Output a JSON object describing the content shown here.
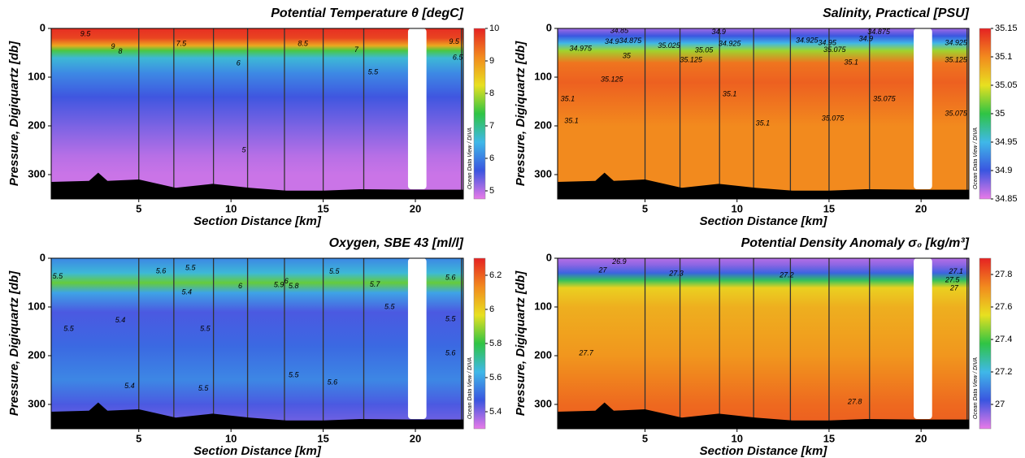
{
  "chart_data": [
    {
      "type": "contour",
      "title": "Potential Temperature θ [degC]",
      "xlabel": "Section Distance [km]",
      "ylabel": "Pressure, Digiquartz [db]",
      "watermark": "Ocean Data View / DIVA",
      "xlim": [
        0.25,
        22.6
      ],
      "ylim": [
        350,
        0
      ],
      "xticks": [
        5,
        10,
        15,
        20
      ],
      "yticks": [
        0,
        100,
        200,
        300
      ],
      "clim": [
        4.75,
        10
      ],
      "cticks": [
        5,
        6,
        7,
        8,
        9,
        10
      ],
      "colormap": [
        "#e87ae8",
        "#3a55e0",
        "#3fb8e8",
        "#2fc444",
        "#e8e020",
        "#f28a1e",
        "#e52222"
      ],
      "field": {
        "depth": [
          0,
          20,
          35,
          45,
          60,
          90,
          140,
          200,
          260,
          300,
          350
        ],
        "values": [
          9.9,
          9.7,
          8.8,
          7.5,
          6.6,
          6.1,
          5.6,
          5.3,
          5.0,
          4.9,
          4.9
        ]
      },
      "stations": [
        5,
        6.9,
        9.05,
        10.9,
        12.9,
        15,
        17.2,
        22.5
      ],
      "gap_x": [
        19.6,
        20.6
      ],
      "bathymetry": {
        "x": [
          0.25,
          2.3,
          2.8,
          3.3,
          5,
          7,
          9,
          11,
          13,
          15,
          17,
          20,
          22.6
        ],
        "y": [
          315,
          313,
          296,
          313,
          310,
          327,
          319,
          327,
          333,
          333,
          330,
          331,
          331
        ]
      },
      "labels": [
        {
          "x": 2.1,
          "y": 12,
          "label": "9.5"
        },
        {
          "x": 3.6,
          "y": 38,
          "label": "9"
        },
        {
          "x": 4.0,
          "y": 48,
          "label": "8"
        },
        {
          "x": 7.3,
          "y": 32,
          "label": "7.5"
        },
        {
          "x": 10.4,
          "y": 72,
          "label": "6"
        },
        {
          "x": 13.9,
          "y": 32,
          "label": "8.5"
        },
        {
          "x": 16.8,
          "y": 44,
          "label": "7"
        },
        {
          "x": 17.7,
          "y": 90,
          "label": "5.5"
        },
        {
          "x": 10.7,
          "y": 250,
          "label": "5"
        },
        {
          "x": 22.1,
          "y": 28,
          "label": "9.5"
        },
        {
          "x": 22.3,
          "y": 60,
          "label": "6.5"
        }
      ]
    },
    {
      "type": "contour",
      "title": "Salinity, Practical [PSU]",
      "xlabel": "Section Distance [km]",
      "ylabel": "Pressure, Digiquartz [db]",
      "watermark": "Ocean Data View / DIVA",
      "xlim": [
        0.25,
        22.6
      ],
      "ylim": [
        350,
        0
      ],
      "xticks": [
        5,
        10,
        15,
        20
      ],
      "yticks": [
        0,
        100,
        200,
        300
      ],
      "clim": [
        34.85,
        35.15
      ],
      "cticks": [
        34.85,
        34.9,
        34.95,
        35,
        35.05,
        35.1,
        35.15
      ],
      "colormap": [
        "#e87ae8",
        "#3a55e0",
        "#3fb8e8",
        "#2fc444",
        "#e8e020",
        "#f28a1e",
        "#e52222"
      ],
      "field": {
        "depth": [
          0,
          15,
          30,
          45,
          70,
          110,
          200,
          350
        ],
        "values": [
          34.87,
          34.9,
          34.95,
          35.03,
          35.11,
          35.12,
          35.1,
          35.1
        ]
      },
      "stations": [
        5,
        6.9,
        9.05,
        10.9,
        12.9,
        15,
        17.2,
        22.5
      ],
      "gap_x": [
        19.6,
        20.6
      ],
      "bathymetry": {
        "x": [
          0.25,
          2.3,
          2.8,
          3.3,
          5,
          7,
          9,
          11,
          13,
          15,
          17,
          20,
          22.6
        ],
        "y": [
          315,
          313,
          296,
          313,
          310,
          327,
          319,
          327,
          333,
          333,
          330,
          331,
          331
        ]
      },
      "labels": [
        {
          "x": 3.6,
          "y": 5,
          "label": "34.85"
        },
        {
          "x": 3.2,
          "y": 28,
          "label": "34.9"
        },
        {
          "x": 4.2,
          "y": 26,
          "label": "34.875"
        },
        {
          "x": 1.5,
          "y": 42,
          "label": "34.975"
        },
        {
          "x": 4.0,
          "y": 57,
          "label": "35"
        },
        {
          "x": 6.3,
          "y": 36,
          "label": "35.025"
        },
        {
          "x": 7.5,
          "y": 65,
          "label": "35.125"
        },
        {
          "x": 8.2,
          "y": 45,
          "label": "35.05"
        },
        {
          "x": 9.6,
          "y": 32,
          "label": "34.925"
        },
        {
          "x": 9,
          "y": 8,
          "label": "34.9"
        },
        {
          "x": 3.2,
          "y": 105,
          "label": "35.125"
        },
        {
          "x": 0.8,
          "y": 145,
          "label": "35.1"
        },
        {
          "x": 1.0,
          "y": 190,
          "label": "35.1"
        },
        {
          "x": 9.6,
          "y": 135,
          "label": "35.1"
        },
        {
          "x": 11.4,
          "y": 195,
          "label": "35.1"
        },
        {
          "x": 13.8,
          "y": 25,
          "label": "34.925"
        },
        {
          "x": 14.9,
          "y": 30,
          "label": "34.95"
        },
        {
          "x": 15.3,
          "y": 44,
          "label": "35.075"
        },
        {
          "x": 15.2,
          "y": 185,
          "label": "35.075"
        },
        {
          "x": 16.2,
          "y": 70,
          "label": "35.1"
        },
        {
          "x": 17.0,
          "y": 22,
          "label": "34.9"
        },
        {
          "x": 17.7,
          "y": 8,
          "label": "34.875"
        },
        {
          "x": 18.0,
          "y": 145,
          "label": "35.075"
        },
        {
          "x": 21.9,
          "y": 30,
          "label": "34.925"
        },
        {
          "x": 21.9,
          "y": 65,
          "label": "35.125"
        },
        {
          "x": 21.9,
          "y": 175,
          "label": "35.075"
        }
      ]
    },
    {
      "type": "contour",
      "title": "Oxygen, SBE 43 [ml/l]",
      "xlabel": "Section Distance [km]",
      "ylabel": "Pressure, Digiquartz [db]",
      "watermark": "Ocean Data View / DIVA",
      "xlim": [
        0.25,
        22.6
      ],
      "ylim": [
        350,
        0
      ],
      "xticks": [
        5,
        10,
        15,
        20
      ],
      "yticks": [
        0,
        100,
        200,
        300
      ],
      "clim": [
        5.3,
        6.3
      ],
      "cticks": [
        5.4,
        5.6,
        5.8,
        6,
        6.2
      ],
      "colormap": [
        "#e87ae8",
        "#3a55e0",
        "#3fb8e8",
        "#2fc444",
        "#e8e020",
        "#f28a1e",
        "#e52222"
      ],
      "field": {
        "depth": [
          0,
          30,
          50,
          70,
          110,
          180,
          250,
          300,
          350
        ],
        "values": [
          5.55,
          5.65,
          5.85,
          5.6,
          5.45,
          5.5,
          5.55,
          5.45,
          5.4
        ]
      },
      "stations": [
        5,
        6.9,
        9.05,
        10.9,
        12.9,
        15,
        17.2,
        22.5
      ],
      "gap_x": [
        19.6,
        20.6
      ],
      "bathymetry": {
        "x": [
          0.25,
          2.3,
          2.8,
          3.3,
          5,
          7,
          9,
          11,
          13,
          15,
          17,
          20,
          22.6
        ],
        "y": [
          315,
          313,
          296,
          313,
          310,
          327,
          319,
          327,
          333,
          333,
          330,
          331,
          331
        ]
      },
      "labels": [
        {
          "x": 0.6,
          "y": 38,
          "label": "5.5"
        },
        {
          "x": 6.2,
          "y": 27,
          "label": "5.6"
        },
        {
          "x": 7.8,
          "y": 20,
          "label": "5.5"
        },
        {
          "x": 7.6,
          "y": 70,
          "label": "5.4"
        },
        {
          "x": 10.5,
          "y": 58,
          "label": "6"
        },
        {
          "x": 12.6,
          "y": 55,
          "label": "5.9"
        },
        {
          "x": 13.0,
          "y": 48,
          "label": "6"
        },
        {
          "x": 13.4,
          "y": 58,
          "label": "5.8"
        },
        {
          "x": 15.6,
          "y": 28,
          "label": "5.5"
        },
        {
          "x": 17.8,
          "y": 54,
          "label": "5.7"
        },
        {
          "x": 18.6,
          "y": 100,
          "label": "5.5"
        },
        {
          "x": 4.0,
          "y": 128,
          "label": "5.4"
        },
        {
          "x": 1.2,
          "y": 145,
          "label": "5.5"
        },
        {
          "x": 8.6,
          "y": 145,
          "label": "5.5"
        },
        {
          "x": 13.4,
          "y": 240,
          "label": "5.5"
        },
        {
          "x": 15.5,
          "y": 255,
          "label": "5.6"
        },
        {
          "x": 4.5,
          "y": 263,
          "label": "5.4"
        },
        {
          "x": 8.5,
          "y": 268,
          "label": "5.5"
        },
        {
          "x": 21.9,
          "y": 40,
          "label": "5.6"
        },
        {
          "x": 21.9,
          "y": 125,
          "label": "5.5"
        },
        {
          "x": 21.9,
          "y": 195,
          "label": "5.6"
        }
      ]
    },
    {
      "type": "contour",
      "title": "Potential Density Anomaly σ₀ [kg/m³]",
      "xlabel": "Section Distance [km]",
      "ylabel": "Pressure, Digiquartz [db]",
      "watermark": "Ocean Data View / DIVA",
      "xlim": [
        0.25,
        22.6
      ],
      "ylim": [
        350,
        0
      ],
      "xticks": [
        5,
        10,
        15,
        20
      ],
      "yticks": [
        0,
        100,
        200,
        300
      ],
      "clim": [
        26.85,
        27.9
      ],
      "cticks": [
        27,
        27.2,
        27.4,
        27.6,
        27.8
      ],
      "colormap": [
        "#e87ae8",
        "#3a55e0",
        "#3fb8e8",
        "#2fc444",
        "#e8e020",
        "#f28a1e",
        "#e52222"
      ],
      "field": {
        "depth": [
          0,
          15,
          30,
          45,
          60,
          100,
          200,
          300,
          350
        ],
        "values": [
          26.9,
          26.95,
          27.05,
          27.35,
          27.58,
          27.65,
          27.7,
          27.78,
          27.8
        ]
      },
      "stations": [
        5,
        6.9,
        9.05,
        10.9,
        12.9,
        15,
        17.2,
        22.5
      ],
      "gap_x": [
        19.6,
        20.6
      ],
      "bathymetry": {
        "x": [
          0.25,
          2.3,
          2.8,
          3.3,
          5,
          7,
          9,
          11,
          13,
          15,
          17,
          20,
          22.6
        ],
        "y": [
          315,
          313,
          296,
          313,
          310,
          327,
          319,
          327,
          333,
          333,
          330,
          331,
          331
        ]
      },
      "labels": [
        {
          "x": 3.6,
          "y": 8,
          "label": "26.9"
        },
        {
          "x": 2.7,
          "y": 25,
          "label": "27"
        },
        {
          "x": 6.7,
          "y": 32,
          "label": "27.3"
        },
        {
          "x": 12.7,
          "y": 35,
          "label": "27.2"
        },
        {
          "x": 21.9,
          "y": 28,
          "label": "27.1"
        },
        {
          "x": 21.7,
          "y": 45,
          "label": "27.5"
        },
        {
          "x": 21.8,
          "y": 62,
          "label": "27"
        },
        {
          "x": 1.8,
          "y": 195,
          "label": "27.7"
        },
        {
          "x": 16.4,
          "y": 295,
          "label": "27.8"
        }
      ]
    }
  ]
}
